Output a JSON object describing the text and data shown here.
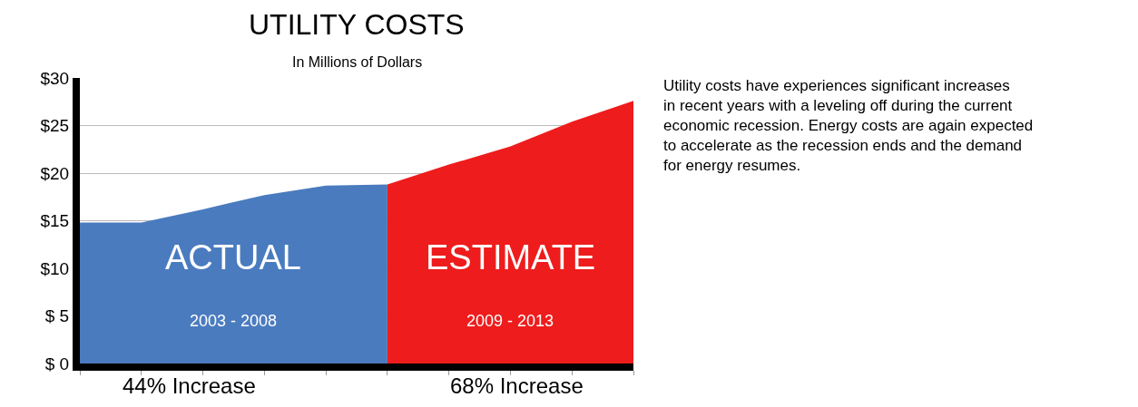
{
  "chart_data": {
    "type": "area",
    "title": "UTILITY COSTS",
    "subtitle": "In Millions of Dollars",
    "categories": [
      null,
      null,
      null,
      null,
      null,
      null,
      null,
      null,
      null,
      null
    ],
    "series": [
      {
        "name": "ACTUAL",
        "color": "#4a7bbf",
        "values": [
          14.8,
          14.8,
          16.2,
          17.7,
          18.7,
          18.8,
          null,
          null,
          null,
          null
        ]
      },
      {
        "name": "ESTIMATE",
        "color": "#ee1c1c",
        "values": [
          null,
          null,
          null,
          null,
          null,
          18.8,
          20.9,
          22.8,
          25.4,
          27.6
        ]
      }
    ],
    "ylim": [
      0,
      30
    ],
    "yticks": [
      {
        "value": 0,
        "label": "$ 0"
      },
      {
        "value": 5,
        "label": "$ 5"
      },
      {
        "value": 10,
        "label": "$10"
      },
      {
        "value": 15,
        "label": "$15"
      },
      {
        "value": 20,
        "label": "$20"
      },
      {
        "value": 25,
        "label": "$25"
      },
      {
        "value": 30,
        "label": "$30"
      }
    ],
    "grid": "y",
    "legend": false,
    "annotations": [
      "2003 - 2008",
      "2009 - 2013",
      "44% Increase",
      "68% Increase",
      "Utility costs have experiences significant increases\nin recent years with a leveling off during the current\neconomic recession. Energy costs are again expected\nto accelerate as the recession ends and the demand\nfor energy resumes."
    ]
  }
}
